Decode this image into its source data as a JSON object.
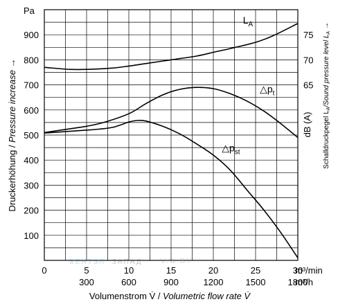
{
  "chart_data": {
    "type": "line",
    "left_axis_unit": "Pa",
    "ylabel_left_plain": "Druckerhöhung / ",
    "ylabel_left_italic": "Pressure increase →",
    "ylabel_right_plain": "dB (A)",
    "ylabel_right_sub_plain": "Schalldruckpegel L",
    "ylabel_right_sub_a": "A",
    "ylabel_right_sub_mid": "/Sound pressure level L",
    "ylabel_right_sub_arrow": " →",
    "xlabel_plain": "Volumenstrom V̇ / ",
    "xlabel_italic": "Volumetric flow rate V̇",
    "x_unit_top": "m³/min",
    "x_unit_bottom": "m³/h",
    "xlim": [
      0,
      30
    ],
    "ylim": [
      0,
      1000
    ],
    "right_ylim_db": [
      40,
      80
    ],
    "x_ticks_top": [
      {
        "v": 0,
        "label": "0"
      },
      {
        "v": 5,
        "label": "5"
      },
      {
        "v": 10,
        "label": "10"
      },
      {
        "v": 15,
        "label": "15"
      },
      {
        "v": 20,
        "label": "20"
      },
      {
        "v": 25,
        "label": "25"
      },
      {
        "v": 30,
        "label": "30"
      }
    ],
    "x_ticks_bottom": [
      {
        "v": 5,
        "label": "300"
      },
      {
        "v": 10,
        "label": "600"
      },
      {
        "v": 15,
        "label": "900"
      },
      {
        "v": 20,
        "label": "1200"
      },
      {
        "v": 25,
        "label": "1500"
      },
      {
        "v": 30,
        "label": "1800"
      }
    ],
    "y_ticks_left": [
      100,
      200,
      300,
      400,
      500,
      600,
      700,
      800,
      900
    ],
    "y_ticks_right": [
      {
        "pa": 900,
        "label": "75"
      },
      {
        "pa": 800,
        "label": "70"
      },
      {
        "pa": 700,
        "label": "65"
      }
    ],
    "grid": true,
    "series": [
      {
        "name": "L",
        "name_sub": "A",
        "label_at": [
          23.5,
          945
        ],
        "values": [
          [
            0,
            770
          ],
          [
            3,
            762
          ],
          [
            5,
            762
          ],
          [
            8,
            767
          ],
          [
            10,
            775
          ],
          [
            12,
            785
          ],
          [
            15,
            800
          ],
          [
            18,
            815
          ],
          [
            20,
            830
          ],
          [
            22,
            845
          ],
          [
            25,
            870
          ],
          [
            27,
            895
          ],
          [
            30,
            945
          ]
        ]
      },
      {
        "name": "△p",
        "name_sub": "t",
        "label_at": [
          25.5,
          670
        ],
        "values": [
          [
            0,
            510
          ],
          [
            2,
            520
          ],
          [
            5,
            535
          ],
          [
            7,
            550
          ],
          [
            10,
            585
          ],
          [
            12,
            625
          ],
          [
            14,
            660
          ],
          [
            16,
            682
          ],
          [
            18,
            690
          ],
          [
            20,
            685
          ],
          [
            22,
            665
          ],
          [
            24,
            635
          ],
          [
            26,
            595
          ],
          [
            28,
            545
          ],
          [
            30,
            490
          ]
        ]
      },
      {
        "name": "△p",
        "name_sub": "st",
        "label_at": [
          21,
          435
        ],
        "values": [
          [
            0,
            508
          ],
          [
            3,
            515
          ],
          [
            6,
            522
          ],
          [
            8,
            530
          ],
          [
            9,
            540
          ],
          [
            10,
            552
          ],
          [
            11,
            558
          ],
          [
            12,
            556
          ],
          [
            14,
            535
          ],
          [
            16,
            505
          ],
          [
            18,
            465
          ],
          [
            20,
            420
          ],
          [
            22,
            360
          ],
          [
            24,
            280
          ],
          [
            26,
            200
          ],
          [
            28,
            110
          ],
          [
            30,
            10
          ]
        ]
      }
    ]
  }
}
